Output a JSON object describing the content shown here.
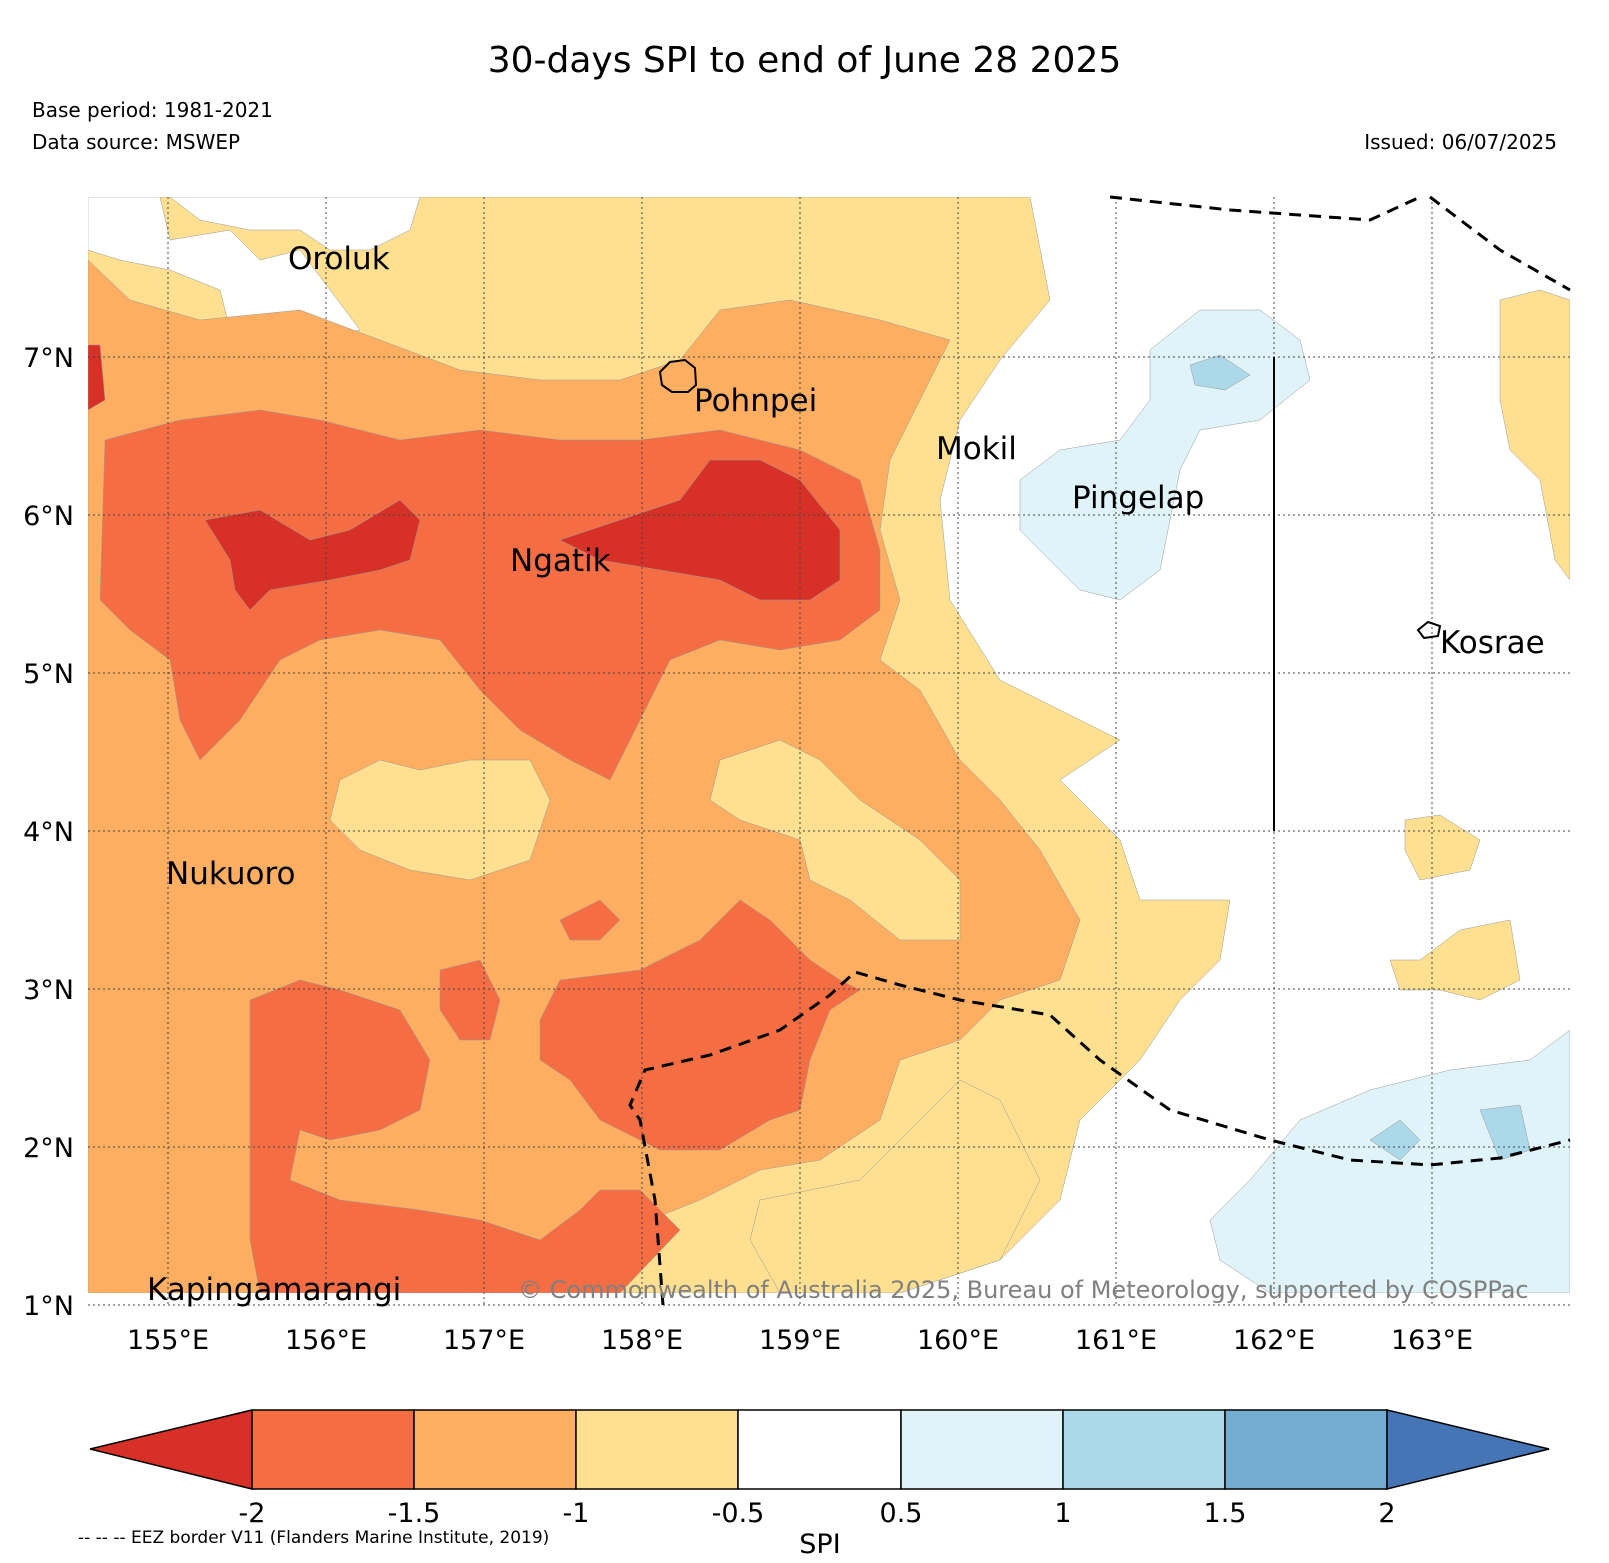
{
  "title": "30-days SPI to end of June 28 2025",
  "base_period": "Base period: 1981-2021",
  "data_source": "Data source: MSWEP",
  "issued": "Issued: 06/07/2025",
  "copyright": "© Commonwealth of Australia 2025, Bureau of Meteorology, supported by COSPPac",
  "map": {
    "lat_labels": [
      "7°N",
      "6°N",
      "5°N",
      "4°N",
      "3°N",
      "2°N",
      "1°N"
    ],
    "lon_labels": [
      "155°E",
      "156°E",
      "157°E",
      "158°E",
      "159°E",
      "160°E",
      "161°E",
      "162°E",
      "163°E"
    ],
    "islands": [
      "Oroluk",
      "Pohnpei",
      "Mokil",
      "Pingelap",
      "Ngatik",
      "Kosrae",
      "Nukuoro",
      "Kapingamarangi"
    ]
  },
  "colorbar": {
    "label": "SPI",
    "ticks": [
      "-2",
      "-1.5",
      "-1",
      "-0.5",
      "0.5",
      "1",
      "1.5",
      "2"
    ],
    "colors": {
      "below_-2": "#d73027",
      "-2_-1.5": "#f46d43",
      "-1.5_-1": "#fdae61",
      "-1_-0.5": "#fee090",
      "-0.5_0.5": "#ffffff",
      "0.5_1": "#e0f3f8",
      "1_1.5": "#abd9e9",
      "1.5_2": "#74add1",
      "above_2": "#4575b4"
    }
  },
  "eez_note": "-- -- -- EEZ border V11 (Flanders Marine Institute, 2019)"
}
